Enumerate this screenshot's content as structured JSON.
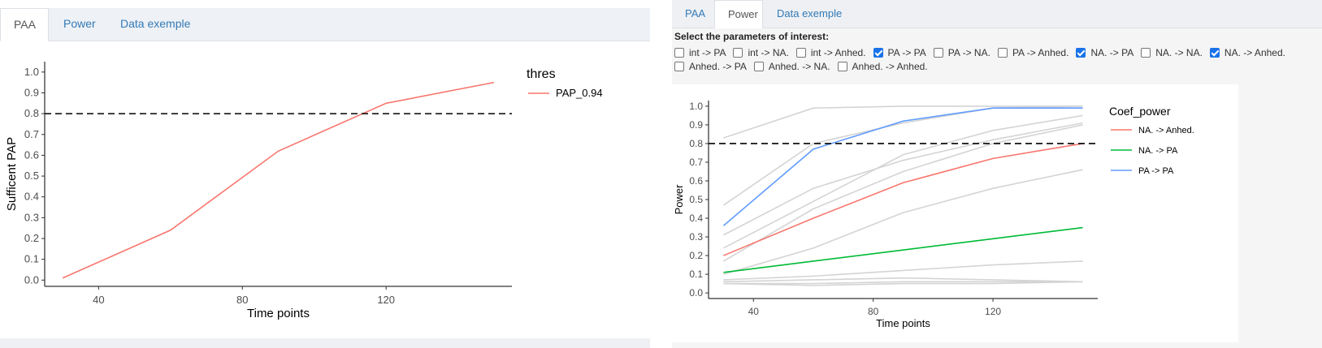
{
  "left": {
    "tabs": [
      {
        "label": "PAA",
        "active": true
      },
      {
        "label": "Power",
        "active": false
      },
      {
        "label": "Data exemple",
        "active": false
      }
    ],
    "chart_data": {
      "type": "line",
      "xlabel": "Time points",
      "ylabel": "Sufficent PAP",
      "xlim": [
        25,
        155
      ],
      "ylim": [
        -0.03,
        1.05
      ],
      "x_ticks": [
        "40",
        "80",
        "120"
      ],
      "x_tick_values": [
        40,
        80,
        120
      ],
      "y_ticks": [
        "0.0",
        "0.1",
        "0.2",
        "0.3",
        "0.4",
        "0.5",
        "0.6",
        "0.7",
        "0.8",
        "0.9",
        "1.0"
      ],
      "y_tick_values": [
        0,
        0.1,
        0.2,
        0.3,
        0.4,
        0.5,
        0.6,
        0.7,
        0.8,
        0.9,
        1.0
      ],
      "threshold": 0.8,
      "legend_title": "thres",
      "legend_position": "right",
      "grid": false,
      "series": [
        {
          "name": "PAP_0.94",
          "color": "#f8766d",
          "x": [
            30,
            60,
            90,
            120,
            150
          ],
          "y": [
            0.01,
            0.24,
            0.62,
            0.85,
            0.95
          ]
        }
      ]
    }
  },
  "right": {
    "tabs": [
      {
        "label": "PAA",
        "active": false
      },
      {
        "label": "Power",
        "active": true
      },
      {
        "label": "Data exemple",
        "active": false
      }
    ],
    "params_label": "Select the parameters of interest:",
    "checkboxes": [
      {
        "label": "int -> PA",
        "checked": false
      },
      {
        "label": "int -> NA.",
        "checked": false
      },
      {
        "label": "int -> Anhed.",
        "checked": false
      },
      {
        "label": "PA -> PA",
        "checked": true
      },
      {
        "label": "PA -> NA.",
        "checked": false
      },
      {
        "label": "PA -> Anhed.",
        "checked": false
      },
      {
        "label": "NA. -> PA",
        "checked": true
      },
      {
        "label": "NA. -> NA.",
        "checked": false
      },
      {
        "label": "NA. -> Anhed.",
        "checked": true
      },
      {
        "label": "Anhed. -> PA",
        "checked": false
      },
      {
        "label": "Anhed. -> NA.",
        "checked": false
      },
      {
        "label": "Anhed. -> Anhed.",
        "checked": false
      }
    ],
    "chart_data": {
      "type": "line",
      "xlabel": "Time points",
      "ylabel": "Power",
      "xlim": [
        25,
        155
      ],
      "ylim": [
        -0.03,
        1.03
      ],
      "x_ticks": [
        "40",
        "80",
        "120"
      ],
      "x_tick_values": [
        40,
        80,
        120
      ],
      "y_ticks": [
        "0.0",
        "0.1",
        "0.2",
        "0.3",
        "0.4",
        "0.5",
        "0.6",
        "0.7",
        "0.8",
        "0.9",
        "1.0"
      ],
      "y_tick_values": [
        0,
        0.1,
        0.2,
        0.3,
        0.4,
        0.5,
        0.6,
        0.7,
        0.8,
        0.9,
        1.0
      ],
      "threshold": 0.8,
      "legend_title": "Coef_power",
      "legend_position": "right",
      "grid": false,
      "x": [
        30,
        60,
        90,
        120,
        150
      ],
      "background_series_color": "#d4d4d4",
      "background_series": [
        [
          0.83,
          0.99,
          1.0,
          1.0,
          1.0
        ],
        [
          0.47,
          0.8,
          0.91,
          0.99,
          1.0
        ],
        [
          0.31,
          0.56,
          0.71,
          0.82,
          0.91
        ],
        [
          0.24,
          0.49,
          0.74,
          0.87,
          0.95
        ],
        [
          0.17,
          0.45,
          0.65,
          0.8,
          0.9
        ],
        [
          0.1,
          0.24,
          0.43,
          0.56,
          0.66
        ],
        [
          0.07,
          0.09,
          0.12,
          0.15,
          0.17
        ],
        [
          0.06,
          0.07,
          0.08,
          0.07,
          0.06
        ],
        [
          0.05,
          0.05,
          0.06,
          0.06,
          0.06
        ],
        [
          0.05,
          0.04,
          0.05,
          0.05,
          0.06
        ]
      ],
      "series": [
        {
          "name": "NA. -> Anhed.",
          "color": "#f8766d",
          "y": [
            0.2,
            0.4,
            0.59,
            0.72,
            0.8
          ]
        },
        {
          "name": "NA. -> PA",
          "color": "#00ba38",
          "y": [
            0.11,
            0.17,
            0.23,
            0.29,
            0.35
          ]
        },
        {
          "name": "PA -> PA",
          "color": "#619cff",
          "y": [
            0.36,
            0.77,
            0.92,
            0.99,
            0.99
          ]
        }
      ]
    }
  }
}
